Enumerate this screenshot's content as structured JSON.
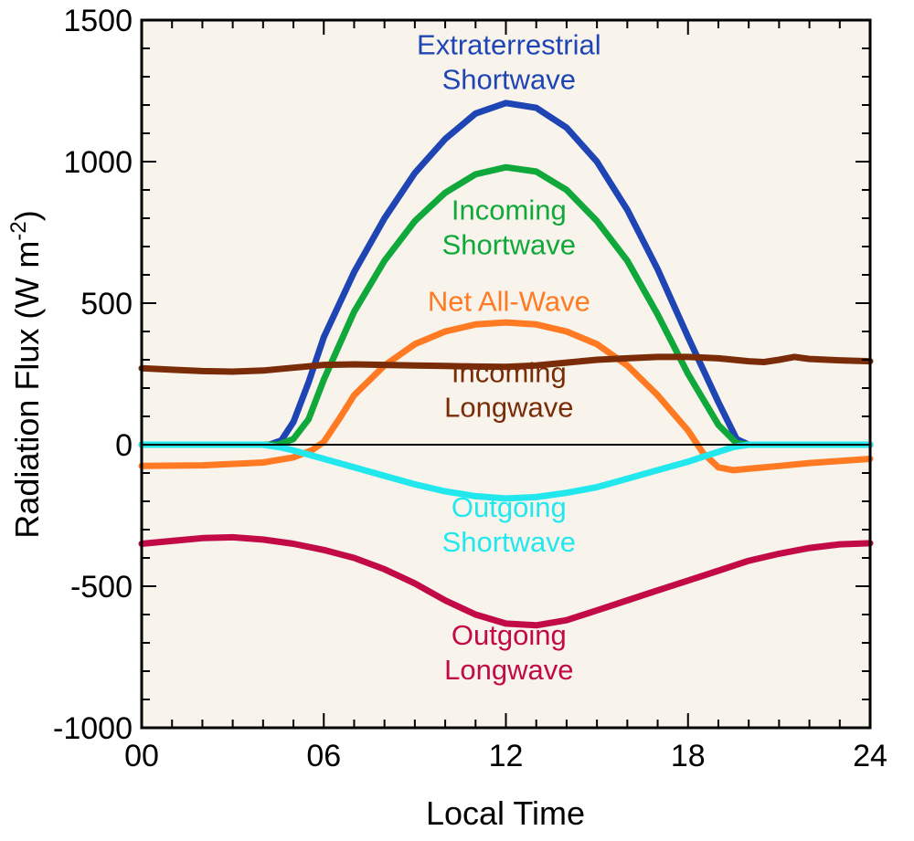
{
  "chart_data": {
    "type": "line",
    "xlabel": "Local Time",
    "ylabel_main": "Radiation Flux (W m",
    "ylabel_sup": "-2",
    "ylabel_close": ")",
    "xlim": [
      0,
      24
    ],
    "ylim": [
      -1000,
      1500
    ],
    "xticks": [
      {
        "value": 0,
        "label": "00"
      },
      {
        "value": 6,
        "label": "06"
      },
      {
        "value": 12,
        "label": "12"
      },
      {
        "value": 18,
        "label": "18"
      },
      {
        "value": 24,
        "label": "24"
      }
    ],
    "yticks": [
      {
        "value": 1500,
        "label": "1500"
      },
      {
        "value": 1000,
        "label": "1000"
      },
      {
        "value": 500,
        "label": "500"
      },
      {
        "value": 0,
        "label": "0"
      },
      {
        "value": -500,
        "label": "-500"
      },
      {
        "value": -1000,
        "label": "-1000"
      }
    ],
    "plot_background": "#f8f4ec",
    "zero_line": true,
    "grid": false,
    "series": [
      {
        "name": "Extraterrestrial Shortwave",
        "label_lines": [
          "Extraterrestrial",
          "Shortwave"
        ],
        "label_at": {
          "x": 12.1,
          "y": 1353
        },
        "color": "#1f45b5",
        "points": [
          [
            0,
            0
          ],
          [
            4.2,
            0
          ],
          [
            4.6,
            15
          ],
          [
            5,
            80
          ],
          [
            5.5,
            220
          ],
          [
            6,
            380
          ],
          [
            7,
            610
          ],
          [
            8,
            800
          ],
          [
            9,
            960
          ],
          [
            10,
            1080
          ],
          [
            11,
            1170
          ],
          [
            12,
            1207
          ],
          [
            13,
            1190
          ],
          [
            14,
            1120
          ],
          [
            15,
            1000
          ],
          [
            16,
            830
          ],
          [
            17,
            620
          ],
          [
            18,
            380
          ],
          [
            19,
            150
          ],
          [
            19.6,
            20
          ],
          [
            20,
            0
          ],
          [
            24,
            0
          ]
        ]
      },
      {
        "name": "Incoming Shortwave",
        "label_lines": [
          "Incoming",
          "Shortwave"
        ],
        "label_at": {
          "x": 12.1,
          "y": 770
        },
        "color": "#10a83a",
        "points": [
          [
            0,
            0
          ],
          [
            4.5,
            0
          ],
          [
            5,
            20
          ],
          [
            5.5,
            90
          ],
          [
            6,
            230
          ],
          [
            7,
            470
          ],
          [
            8,
            650
          ],
          [
            9,
            790
          ],
          [
            10,
            890
          ],
          [
            11,
            955
          ],
          [
            12,
            980
          ],
          [
            13,
            965
          ],
          [
            14,
            900
          ],
          [
            15,
            790
          ],
          [
            16,
            650
          ],
          [
            17,
            460
          ],
          [
            18,
            250
          ],
          [
            19,
            70
          ],
          [
            19.6,
            5
          ],
          [
            20,
            0
          ],
          [
            24,
            0
          ]
        ]
      },
      {
        "name": "Net All-Wave",
        "label_lines": [
          "Net All-Wave"
        ],
        "label_at": {
          "x": 12.1,
          "y": 508
        },
        "color": "#ff7a22",
        "points": [
          [
            0,
            -75
          ],
          [
            2,
            -73
          ],
          [
            4,
            -63
          ],
          [
            5,
            -45
          ],
          [
            5.6,
            -20
          ],
          [
            6,
            10
          ],
          [
            6.5,
            90
          ],
          [
            7,
            175
          ],
          [
            8,
            280
          ],
          [
            9,
            355
          ],
          [
            10,
            400
          ],
          [
            11,
            425
          ],
          [
            12,
            432
          ],
          [
            13,
            425
          ],
          [
            14,
            400
          ],
          [
            15,
            355
          ],
          [
            16,
            280
          ],
          [
            17,
            175
          ],
          [
            18,
            50
          ],
          [
            18.5,
            -30
          ],
          [
            19,
            -80
          ],
          [
            19.5,
            -90
          ],
          [
            21,
            -75
          ],
          [
            22,
            -65
          ],
          [
            24,
            -50
          ]
        ]
      },
      {
        "name": "Incoming Longwave",
        "label_lines": [
          "Incoming",
          "Longwave"
        ],
        "label_at": {
          "x": 12.1,
          "y": 195
        },
        "color": "#7a2c08",
        "points": [
          [
            0,
            270
          ],
          [
            1,
            265
          ],
          [
            2,
            260
          ],
          [
            3,
            258
          ],
          [
            4,
            262
          ],
          [
            5,
            272
          ],
          [
            6,
            282
          ],
          [
            7,
            284
          ],
          [
            8,
            282
          ],
          [
            9,
            280
          ],
          [
            10,
            278
          ],
          [
            11,
            276
          ],
          [
            12,
            275
          ],
          [
            13,
            280
          ],
          [
            14,
            290
          ],
          [
            15,
            300
          ],
          [
            16,
            305
          ],
          [
            17,
            310
          ],
          [
            18,
            310
          ],
          [
            19,
            305
          ],
          [
            20,
            295
          ],
          [
            20.5,
            292
          ],
          [
            21,
            300
          ],
          [
            21.5,
            310
          ],
          [
            22,
            303
          ],
          [
            23,
            298
          ],
          [
            24,
            295
          ]
        ]
      },
      {
        "name": "Outgoing Shortwave",
        "label_lines": [
          "Outgoing",
          "Shortwave"
        ],
        "label_at": {
          "x": 12.1,
          "y": -280
        },
        "color": "#22e8ee",
        "points": [
          [
            0,
            0
          ],
          [
            4,
            0
          ],
          [
            4.6,
            -10
          ],
          [
            5,
            -20
          ],
          [
            6,
            -50
          ],
          [
            7,
            -80
          ],
          [
            8,
            -110
          ],
          [
            9,
            -140
          ],
          [
            10,
            -165
          ],
          [
            11,
            -182
          ],
          [
            12,
            -190
          ],
          [
            13,
            -185
          ],
          [
            14,
            -170
          ],
          [
            15,
            -150
          ],
          [
            16,
            -120
          ],
          [
            17,
            -90
          ],
          [
            18,
            -60
          ],
          [
            19,
            -25
          ],
          [
            19.5,
            -8
          ],
          [
            20,
            0
          ],
          [
            24,
            0
          ]
        ]
      },
      {
        "name": "Outgoing Longwave",
        "label_lines": [
          "Outgoing",
          "Longwave"
        ],
        "label_at": {
          "x": 12.1,
          "y": -732
        },
        "color": "#c20a46",
        "points": [
          [
            0,
            -350
          ],
          [
            1,
            -340
          ],
          [
            2,
            -330
          ],
          [
            3,
            -327
          ],
          [
            4,
            -335
          ],
          [
            5,
            -350
          ],
          [
            6,
            -372
          ],
          [
            7,
            -400
          ],
          [
            8,
            -440
          ],
          [
            9,
            -490
          ],
          [
            10,
            -550
          ],
          [
            11,
            -600
          ],
          [
            12,
            -632
          ],
          [
            13,
            -638
          ],
          [
            14,
            -620
          ],
          [
            15,
            -585
          ],
          [
            16,
            -550
          ],
          [
            17,
            -515
          ],
          [
            18,
            -480
          ],
          [
            19,
            -445
          ],
          [
            20,
            -410
          ],
          [
            21,
            -385
          ],
          [
            22,
            -365
          ],
          [
            23,
            -352
          ],
          [
            24,
            -348
          ]
        ]
      }
    ]
  }
}
